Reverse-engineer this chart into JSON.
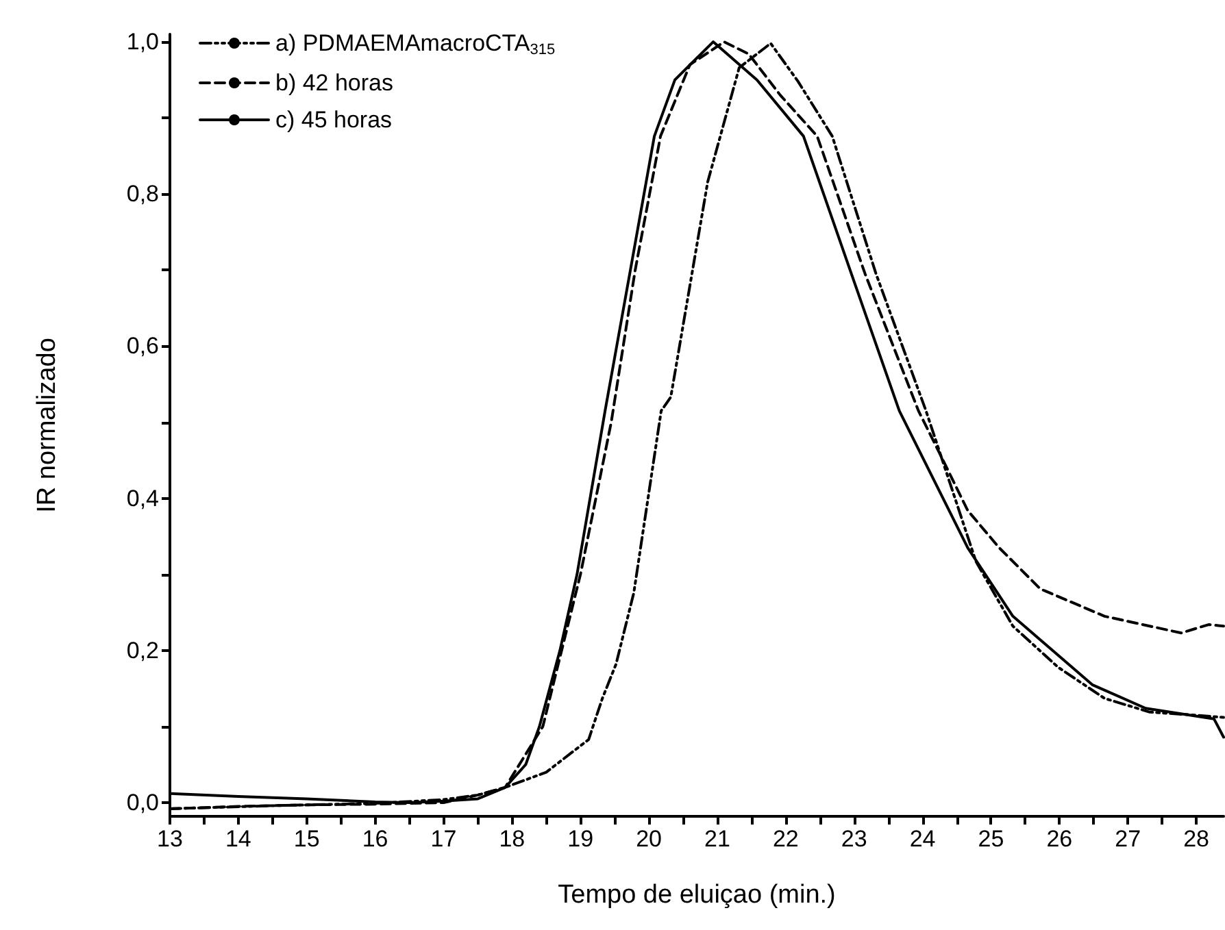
{
  "chart_data": {
    "type": "line",
    "xlabel": "Tempo de eluiçao (min.)",
    "ylabel": "IR normalizado",
    "xlim": [
      13,
      28.4
    ],
    "ylim": [
      -0.018,
      1.01
    ],
    "xticks": [
      13,
      {
        "value": 13.5,
        "label": null
      },
      14,
      {
        "value": 14.5,
        "label": null
      },
      15,
      {
        "value": 15.5,
        "label": null
      },
      16,
      {
        "value": 16.5,
        "label": null
      },
      17,
      {
        "value": 17.5,
        "label": null
      },
      18,
      {
        "value": 18.5,
        "label": null
      },
      19,
      {
        "value": 19.5,
        "label": null
      },
      20,
      {
        "value": 20.5,
        "label": null
      },
      21,
      {
        "value": 21.5,
        "label": null
      },
      22,
      {
        "value": 22.5,
        "label": null
      },
      23,
      {
        "value": 23.5,
        "label": null
      },
      24,
      {
        "value": 24.5,
        "label": null
      },
      25,
      {
        "value": 25.5,
        "label": null
      },
      26,
      {
        "value": 26.5,
        "label": null
      },
      27,
      {
        "value": 27.5,
        "label": null
      },
      28
    ],
    "yticks": [
      {
        "value": 0,
        "label": "0,0"
      },
      {
        "value": 0.1,
        "label": null
      },
      {
        "value": 0.2,
        "label": "0,2"
      },
      {
        "value": 0.3,
        "label": null
      },
      {
        "value": 0.4,
        "label": "0,4"
      },
      {
        "value": 0.5,
        "label": null
      },
      {
        "value": 0.6,
        "label": "0,6"
      },
      {
        "value": 0.7,
        "label": null
      },
      {
        "value": 0.8,
        "label": "0,8"
      },
      {
        "value": 0.9,
        "label": null
      },
      {
        "value": 1.0,
        "label": "1,0"
      }
    ],
    "grid": false,
    "legend": "top left",
    "marker": "none",
    "series": [
      {
        "name": "a) PDMAEMAmacroCTA$_{315}$",
        "color": "#000000",
        "line_style": "dashdot",
        "x": [
          13,
          14.5,
          16,
          17,
          17.5,
          17.9,
          18.5,
          19.12,
          19.32,
          19.52,
          19.78,
          20.18,
          20.32,
          20.86,
          21.32,
          21.78,
          22.18,
          22.68,
          23.32,
          24.05,
          24.78,
          25.32,
          25.98,
          26.66,
          27.32,
          27.98,
          28.4
        ],
        "values": [
          -0.008,
          -0.004,
          -0.001,
          0.004,
          0.01,
          0.02,
          0.04,
          0.083,
          0.137,
          0.182,
          0.276,
          0.515,
          0.533,
          0.816,
          0.966,
          0.998,
          0.948,
          0.876,
          0.695,
          0.515,
          0.317,
          0.232,
          0.178,
          0.137,
          0.119,
          0.115,
          0.112
        ]
      },
      {
        "name": "b) 42 horas",
        "color": "#000000",
        "line_style": "dashed",
        "x": [
          13,
          14,
          15,
          16,
          17,
          17.5,
          17.9,
          18.45,
          19.0,
          19.45,
          19.8,
          20.17,
          20.6,
          21.1,
          21.46,
          21.92,
          22.46,
          23.16,
          23.94,
          24.3,
          24.66,
          25.12,
          25.72,
          26.66,
          27.78,
          28.18,
          28.4
        ],
        "values": [
          -0.008,
          -0.005,
          -0.003,
          -0.002,
          0,
          0.01,
          0.02,
          0.1,
          0.3,
          0.5,
          0.7,
          0.876,
          0.97,
          1.0,
          0.984,
          0.93,
          0.876,
          0.695,
          0.515,
          0.45,
          0.384,
          0.335,
          0.281,
          0.245,
          0.223,
          0.234,
          0.232
        ]
      },
      {
        "name": "c) 45 horas",
        "color": "#000000",
        "line_style": "solid",
        "x": [
          13,
          14,
          15,
          16,
          16.5,
          17,
          17.5,
          17.9,
          18.2,
          18.4,
          18.7,
          18.95,
          19.36,
          19.72,
          20.08,
          20.38,
          20.94,
          21.58,
          22.26,
          22.96,
          23.66,
          24.66,
          25.32,
          26.48,
          27.26,
          28.26,
          28.4
        ],
        "values": [
          0.012,
          0.008,
          0.005,
          0.001,
          0,
          0.002,
          0.005,
          0.02,
          0.05,
          0.1,
          0.2,
          0.3,
          0.515,
          0.695,
          0.876,
          0.95,
          1.0,
          0.95,
          0.876,
          0.695,
          0.515,
          0.335,
          0.245,
          0.155,
          0.124,
          0.11,
          0.086
        ]
      }
    ]
  }
}
